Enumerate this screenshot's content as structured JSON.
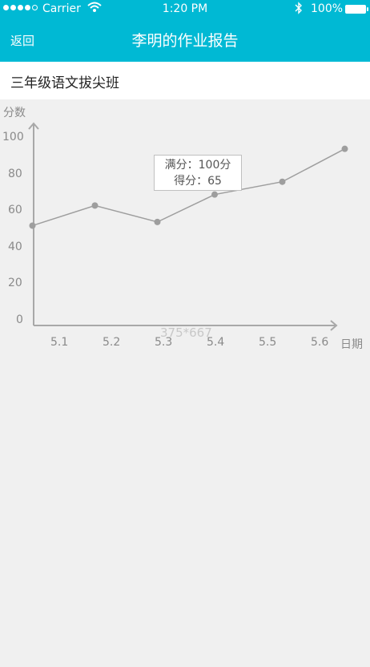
{
  "status_bar": {
    "carrier": "Carrier",
    "time": "1:20 PM",
    "battery": "100%"
  },
  "nav": {
    "back_label": "返回",
    "title": "李明的作业报告"
  },
  "class_name": "三年级语文拔尖班",
  "overlay_text": "375*667",
  "colors": {
    "accent": "#00b9d4",
    "background": "#f0f0f0",
    "line": "#9e9e9e"
  },
  "chart_data": {
    "type": "line",
    "ylabel": "分数",
    "xlabel": "日期",
    "ylim": [
      0,
      100
    ],
    "yticks": [
      0,
      20,
      40,
      60,
      80,
      100
    ],
    "categories": [
      "5.1",
      "5.2",
      "5.3",
      "5.4",
      "5.5",
      "5.6"
    ],
    "points": [
      {
        "x": 5.05,
        "y": 52
      },
      {
        "x": 5.17,
        "y": 63
      },
      {
        "x": 5.29,
        "y": 54
      },
      {
        "x": 5.4,
        "y": 69
      },
      {
        "x": 5.53,
        "y": 76
      },
      {
        "x": 5.65,
        "y": 94
      }
    ],
    "tooltip": {
      "line1": "满分：100分",
      "line2": "得分：65"
    }
  }
}
